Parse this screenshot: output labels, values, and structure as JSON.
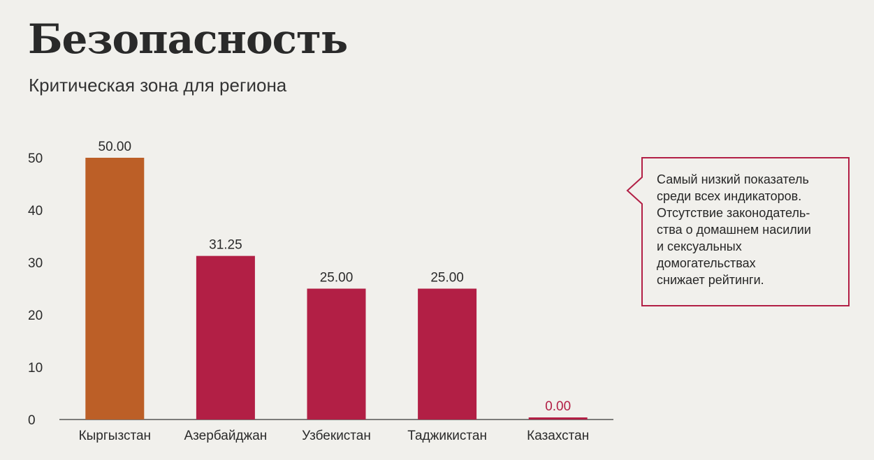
{
  "title": "Безопасность",
  "subtitle": "Критическая зона для региона",
  "note": {
    "text": "Самый низкий показатель\nсреди всех индикаторов.\nОтсутствие законодатель-\nства о домашнем насилии\nи сексуальных\nдомогательствах\nснижает рейтинги."
  },
  "colors": {
    "highlight": "#bc5f27",
    "bar": "#b21f45",
    "accent": "#b21f45",
    "text": "#2a2a2a"
  },
  "chart_data": {
    "type": "bar",
    "categories": [
      "Кыргызстан",
      "Азербайджан",
      "Узбекистан",
      "Таджикистан",
      "Казахстан"
    ],
    "values": [
      50,
      31.25,
      25,
      25,
      0
    ],
    "value_labels": [
      "50.00",
      "31.25",
      "25.00",
      "25.00",
      "0.00"
    ],
    "highlighted_category": "Кыргызстан",
    "yticks": [
      "0",
      "10",
      "20",
      "30",
      "40",
      "50"
    ],
    "ylim": [
      0,
      50
    ],
    "title": "Безопасность",
    "subtitle": "Критическая зона для региона",
    "xlabel": "",
    "ylabel": "",
    "grid": false,
    "legend": "none"
  }
}
